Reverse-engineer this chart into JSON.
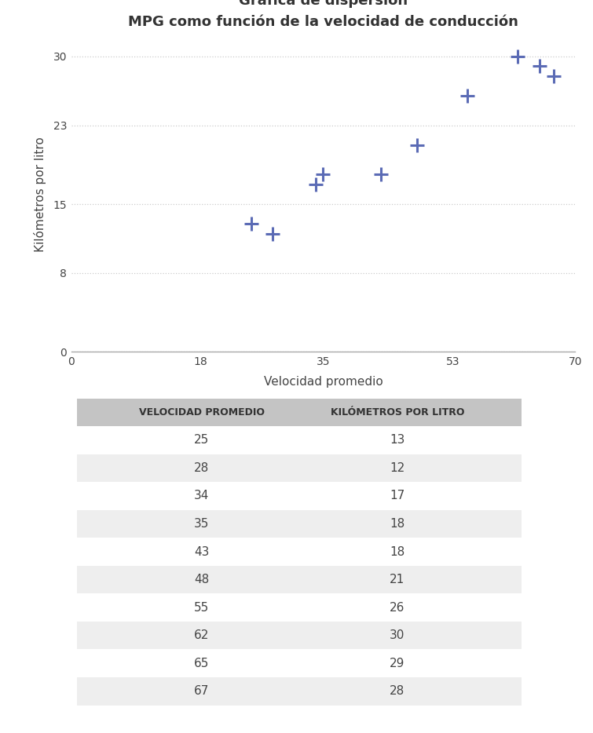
{
  "title_line1": "Gráfica de dispersión",
  "title_line2": "MPG como función de la velocidad de conducción",
  "xlabel": "Velocidad promedio",
  "ylabel": "Kilómetros por litro",
  "x_data": [
    25,
    28,
    34,
    35,
    43,
    48,
    55,
    62,
    65,
    67
  ],
  "y_data": [
    13,
    12,
    17,
    18,
    18,
    21,
    26,
    30,
    29,
    28
  ],
  "marker_color": "#5B6BB5",
  "xlim": [
    0,
    70
  ],
  "ylim": [
    0,
    32
  ],
  "xticks": [
    0,
    18,
    35,
    53,
    70
  ],
  "yticks": [
    0,
    8,
    15,
    23,
    30
  ],
  "grid_color": "#cccccc",
  "bg_color": "#ffffff",
  "table_header_bg": "#c4c4c4",
  "table_row_bg_even": "#ffffff",
  "table_row_bg_odd": "#eeeeee",
  "table_col1_header": "VELOCIDAD PROMEDIO",
  "table_col2_header": "KILÓMETROS POR LITRO",
  "table_data": [
    [
      25,
      13
    ],
    [
      28,
      12
    ],
    [
      34,
      17
    ],
    [
      35,
      18
    ],
    [
      43,
      18
    ],
    [
      48,
      21
    ],
    [
      55,
      26
    ],
    [
      62,
      30
    ],
    [
      65,
      29
    ],
    [
      67,
      28
    ]
  ],
  "title_fontsize": 13,
  "axis_label_fontsize": 11,
  "tick_fontsize": 10,
  "table_header_fontsize": 9,
  "table_data_fontsize": 11
}
